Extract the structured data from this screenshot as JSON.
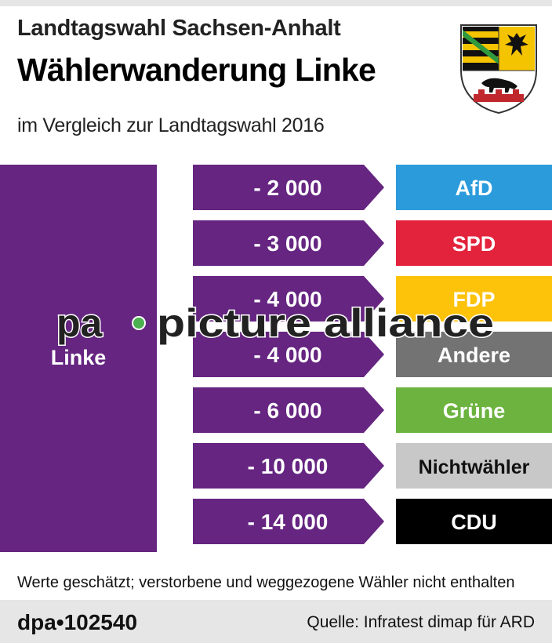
{
  "header": {
    "supertitle": "Landtagswahl Sachsen-Anhalt",
    "title": "Wählerwanderung Linke",
    "subtitle": "im Vergleich zur Landtagswahl 2016"
  },
  "chart_data": {
    "type": "bar",
    "source_party": "Linke",
    "source_color": "#652581",
    "flows": [
      {
        "value": -2000,
        "label": "- 2 000",
        "party": "AfD",
        "color": "#2b9bdb",
        "text_color": "#ffffff"
      },
      {
        "value": -3000,
        "label": "- 3 000",
        "party": "SPD",
        "color": "#e3223b",
        "text_color": "#ffffff"
      },
      {
        "value": -4000,
        "label": "- 4 000",
        "party": "FDP",
        "color": "#fdc20a",
        "text_color": "#ffffff"
      },
      {
        "value": -4000,
        "label": "- 4 000",
        "party": "Andere",
        "color": "#737373",
        "text_color": "#ffffff"
      },
      {
        "value": -6000,
        "label": "- 6 000",
        "party": "Grüne",
        "color": "#6cb33f",
        "text_color": "#ffffff"
      },
      {
        "value": -10000,
        "label": "- 10 000",
        "party": "Nichtwähler",
        "color": "#c8c8c8",
        "text_color": "#111111"
      },
      {
        "value": -14000,
        "label": "- 14 000",
        "party": "CDU",
        "color": "#000000",
        "text_color": "#ffffff"
      }
    ]
  },
  "footnote": "Werte geschätzt; verstorbene und weggezogene Wähler nicht enthalten",
  "footer": {
    "agency": "dpa",
    "id": "102540",
    "source": "Quelle: Infratest dimap für ARD"
  },
  "watermark": {
    "left": "pa",
    "right": "picture alliance"
  }
}
